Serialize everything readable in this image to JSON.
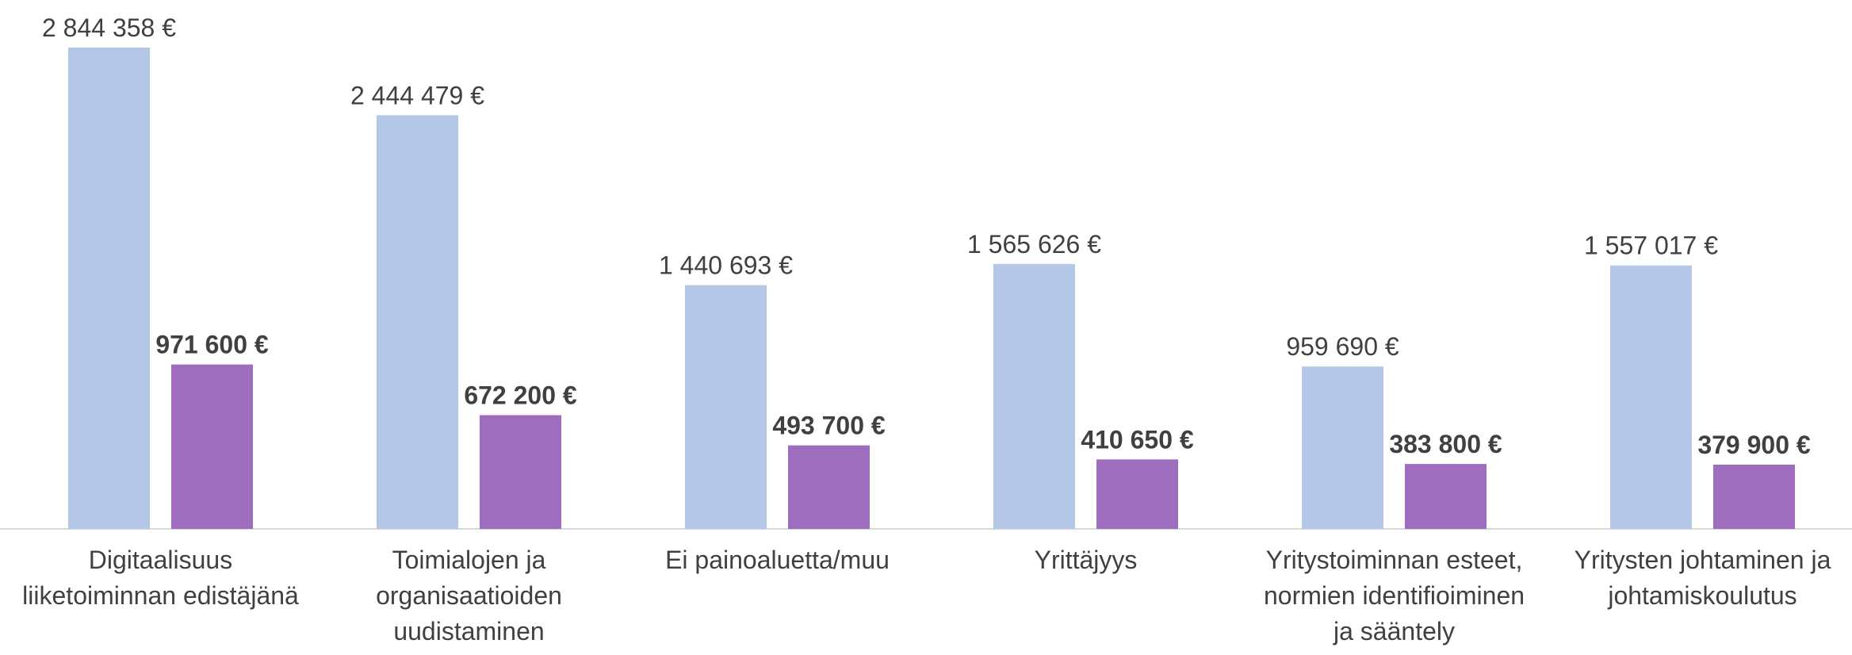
{
  "chart_data": {
    "type": "bar",
    "categories": [
      "Digitaalisuus\nliiketoiminnan edistäjänä",
      "Toimialojen ja\norganisaatioiden\nuudistaminen",
      "Ei painoaluetta/muu",
      "Yrittäjyys",
      "Yritystoiminnan esteet,\nnormien identifioiminen\nja sääntely",
      "Yritysten johtaminen ja\njohtamiskoulutus"
    ],
    "series": [
      {
        "color": "#b4c7e7",
        "values": [
          2844358,
          2444479,
          1440693,
          1565626,
          959690,
          1557017
        ],
        "value_labels": [
          "2 844 358 €",
          "2 444 479 €",
          "1 440 693 €",
          "1 565 626 €",
          "959 690 €",
          "1 557 017 €"
        ]
      },
      {
        "color": "#9e6dbd",
        "values": [
          971600,
          672200,
          493700,
          410650,
          383800,
          379900
        ],
        "value_labels": [
          "971 600 €",
          "672 200 €",
          "493 700 €",
          "410 650 €",
          "383 800 €",
          "379 900 €"
        ]
      }
    ]
  }
}
